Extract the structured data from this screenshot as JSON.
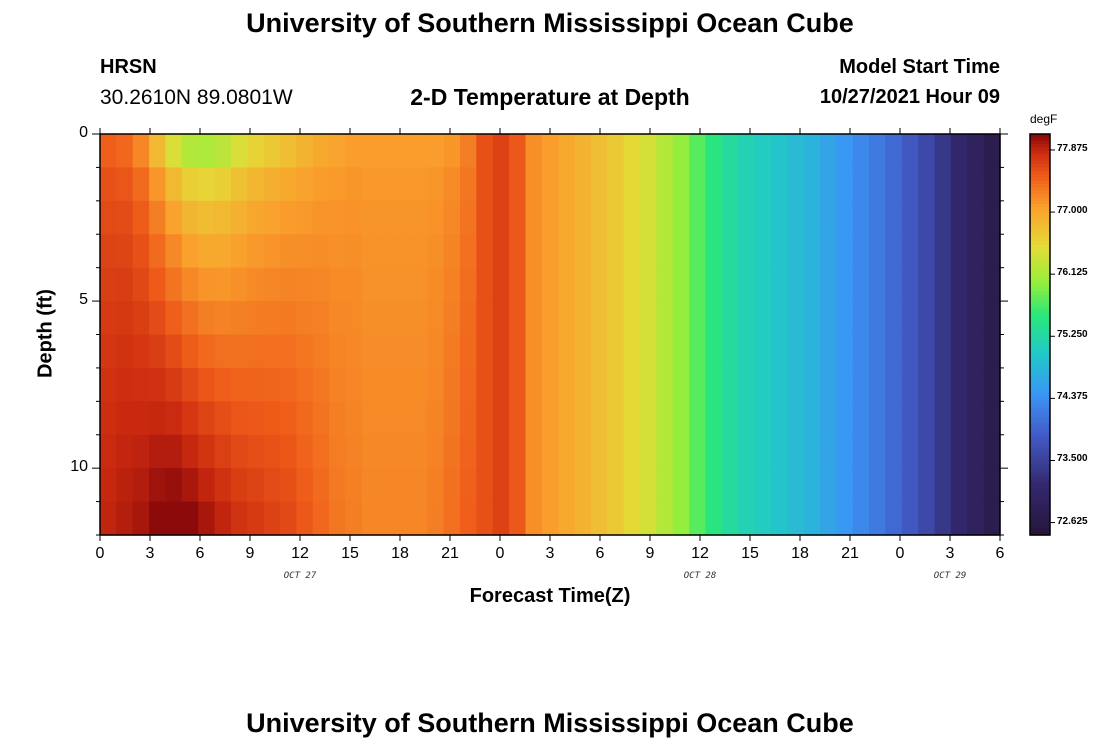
{
  "header": {
    "title": "University of Southern Mississippi Ocean Cube",
    "station": "HRSN",
    "coords": "30.2610N  89.0801W",
    "subtitle": "2-D Temperature at Depth",
    "start_label": "Model Start Time",
    "start_value": "10/27/2021 Hour 09"
  },
  "footer": {
    "title": "University of Southern Mississippi Ocean Cube"
  },
  "chart_data": {
    "type": "heatmap",
    "title": "2-D Temperature at Depth",
    "xlabel": "Forecast Time(Z)",
    "ylabel": "Depth (ft)",
    "x_tick_labels": [
      "0",
      "3",
      "6",
      "9",
      "12",
      "15",
      "18",
      "21",
      "0",
      "3",
      "6",
      "9",
      "12",
      "15",
      "18",
      "21",
      "0",
      "3",
      "6"
    ],
    "x_hours": [
      0,
      3,
      6,
      9,
      12,
      15,
      18,
      21,
      24,
      27,
      30,
      33,
      36,
      39,
      42,
      45,
      48,
      51,
      54
    ],
    "x_range_hours": [
      0,
      54
    ],
    "date_labels": [
      {
        "text": "OCT 27",
        "hour": 12
      },
      {
        "text": "OCT 28",
        "hour": 36
      },
      {
        "text": "OCT 29",
        "hour": 51
      }
    ],
    "y_ticks": [
      0,
      5,
      10
    ],
    "y_range_ft": [
      0,
      12
    ],
    "colorbar": {
      "unit": "degF",
      "ticks": [
        "77.875",
        "77.000",
        "76.125",
        "75.250",
        "74.375",
        "73.500",
        "72.625"
      ],
      "range": [
        72.45,
        78.1
      ]
    },
    "surface_temp_degF": [
      77.5,
      77.45,
      77.25,
      76.85,
      76.45,
      76.2,
      76.15,
      76.25,
      76.45,
      76.6,
      76.7,
      76.8,
      76.9,
      77.0,
      77.05,
      77.1,
      77.1,
      77.1,
      77.1,
      77.1,
      77.1,
      77.15,
      77.3,
      77.6,
      77.7,
      77.55,
      77.2,
      77.1,
      77.0,
      76.9,
      76.8,
      76.7,
      76.55,
      76.4,
      76.2,
      76.0,
      75.75,
      75.5,
      75.3,
      75.15,
      75.05,
      74.95,
      74.85,
      74.75,
      74.6,
      74.45,
      74.3,
      74.15,
      74.0,
      73.8,
      73.6,
      73.35,
      73.1,
      72.9,
      72.7
    ],
    "bottom_temp_degF": [
      77.9,
      77.95,
      78.0,
      78.1,
      78.15,
      78.1,
      78.0,
      77.9,
      77.8,
      77.75,
      77.7,
      77.65,
      77.55,
      77.45,
      77.35,
      77.3,
      77.25,
      77.25,
      77.25,
      77.25,
      77.3,
      77.4,
      77.5,
      77.6,
      77.7,
      77.55,
      77.2,
      77.1,
      77.0,
      76.9,
      76.8,
      76.7,
      76.55,
      76.4,
      76.2,
      76.0,
      75.75,
      75.5,
      75.3,
      75.15,
      75.05,
      74.95,
      74.85,
      74.75,
      74.6,
      74.45,
      74.3,
      74.15,
      74.0,
      73.8,
      73.6,
      73.35,
      73.1,
      72.9,
      72.7
    ],
    "depth_levels": 12,
    "grid": false
  }
}
